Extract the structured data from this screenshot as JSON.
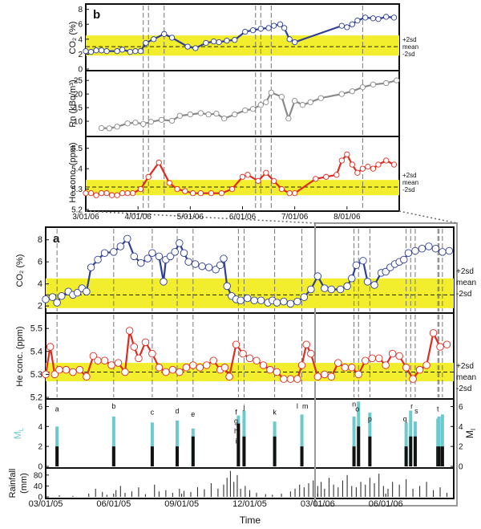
{
  "figure": {
    "colors": {
      "band": "#f2ee2e",
      "co2": "#2f3f95",
      "rn": "#8a8a8a",
      "he": "#e02a1f",
      "ml": "#6ec9cd",
      "mi": "#111111",
      "rain": "#333333",
      "marker_fill": "#ffffff"
    },
    "band_labels": [
      "+2sd",
      "mean",
      "-2sd"
    ]
  },
  "panels": {
    "b": {
      "label": "b",
      "x_tick_labels": [
        "3/01/06",
        "4/01/06",
        "5/01/06",
        "6/01/06",
        "7/01/06",
        "8/01/06"
      ],
      "co2": {
        "ylabel": "CO₂ (%)",
        "ticks": [
          "0",
          "2",
          "4",
          "6",
          "8"
        ]
      },
      "rn": {
        "ylabel": "Rn (kBq/m³)",
        "ticks": [
          "10",
          "15",
          "20",
          "25"
        ]
      },
      "he": {
        "ylabel": "He conc. (ppm)",
        "ticks": [
          "5.2",
          "5.3",
          "5.4",
          "5.5"
        ]
      }
    },
    "a": {
      "label": "a",
      "co2": {
        "ylabel": "CO₂ (%)",
        "ticks": [
          "2",
          "4",
          "6",
          "8"
        ]
      },
      "he": {
        "ylabel": "He conc. (ppm)",
        "ticks": [
          "5.2",
          "5.3",
          "5.4",
          "5.5"
        ]
      },
      "quake": {
        "ml_label": "M",
        "ml_sub": "L",
        "mi_label": "M",
        "mi_sub": "I",
        "left_ticks": [
          "0",
          "2",
          "4",
          "6"
        ],
        "right_ticks": [
          "0",
          "2",
          "4",
          "6"
        ]
      },
      "rain": {
        "ylabel_line1": "Rainfall",
        "ylabel_line2": "(mm)",
        "ticks": [
          "0",
          "40",
          "80"
        ]
      },
      "x_tick_labels": [
        "03/01/05",
        "06/01/05",
        "09/01/05",
        "12/01/05",
        "03/01/06",
        "06/01/06"
      ],
      "xlabel": "Time"
    }
  },
  "chart_data": [
    {
      "id": "panel-b-co2",
      "type": "line",
      "title": "b",
      "xlabel": "",
      "ylabel": "CO₂ (%)",
      "ylim": [
        0,
        8.5
      ],
      "xlim": [
        0,
        6
      ],
      "x_unit": "months since 3/01/06",
      "band": {
        "low": 1.8,
        "mean": 3.0,
        "high": 4.5
      },
      "x": [
        0,
        0.1,
        0.2,
        0.3,
        0.4,
        0.6,
        0.7,
        0.85,
        0.95,
        1.05,
        1.15,
        1.3,
        1.5,
        1.65,
        1.95,
        2.1,
        2.3,
        2.45,
        2.55,
        2.7,
        2.85,
        3.05,
        3.2,
        3.35,
        3.5,
        3.6,
        3.72,
        3.8,
        3.9,
        4.0,
        4.9,
        5.0,
        5.1,
        5.2,
        5.35,
        5.5,
        5.6,
        5.75,
        5.9
      ],
      "values": [
        2.4,
        2.3,
        2.5,
        2.5,
        2.4,
        2.4,
        2.6,
        2.3,
        2.4,
        2.4,
        3.5,
        4.0,
        4.7,
        4.2,
        3.0,
        2.8,
        3.5,
        3.7,
        3.6,
        3.8,
        3.9,
        5.0,
        5.2,
        5.4,
        5.5,
        5.8,
        6.0,
        5.5,
        4.0,
        3.6,
        5.8,
        5.6,
        6.0,
        6.5,
        6.9,
        6.8,
        6.7,
        7.0,
        6.9
      ]
    },
    {
      "id": "panel-b-rn",
      "type": "line",
      "title": "",
      "xlabel": "",
      "ylabel": "Rn (kBq/m³)",
      "ylim": [
        5,
        28
      ],
      "xlim": [
        0,
        6
      ],
      "x_unit": "months since 3/01/06",
      "x": [
        0.3,
        0.45,
        0.6,
        0.8,
        0.95,
        1.1,
        1.25,
        1.45,
        1.65,
        1.8,
        2.0,
        2.2,
        2.35,
        2.5,
        2.65,
        2.85,
        3.05,
        3.2,
        3.35,
        3.45,
        3.55,
        3.75,
        3.88,
        4.0,
        4.15,
        4.3,
        4.5,
        4.9,
        5.1,
        5.3,
        5.5,
        5.75,
        5.95
      ],
      "values": [
        7.5,
        7.4,
        8.0,
        9.2,
        9.5,
        9.0,
        9.8,
        10.5,
        10.2,
        12.0,
        12.5,
        13.0,
        12.5,
        12.8,
        11.0,
        12.5,
        14.0,
        14.5,
        16.0,
        17.0,
        20.5,
        19.0,
        11.0,
        17.5,
        16.0,
        17.0,
        18.5,
        20.0,
        21.0,
        22.5,
        23.5,
        24.0,
        25.0
      ]
    },
    {
      "id": "panel-b-he",
      "type": "line",
      "title": "",
      "xlabel": "",
      "ylabel": "He conc. (ppm)",
      "ylim": [
        5.2,
        5.55
      ],
      "xlim": [
        0,
        6
      ],
      "x_unit": "months since 3/01/06",
      "band": {
        "low": 5.27,
        "mean": 5.31,
        "high": 5.345
      },
      "x": [
        0,
        0.1,
        0.2,
        0.3,
        0.4,
        0.5,
        0.6,
        0.7,
        0.8,
        0.9,
        1.05,
        1.2,
        1.4,
        1.6,
        1.75,
        1.9,
        2.05,
        2.2,
        2.4,
        2.6,
        2.8,
        3.0,
        3.1,
        3.3,
        3.45,
        3.6,
        3.75,
        3.9,
        4.0,
        4.4,
        4.6,
        4.8,
        4.9,
        5.0,
        5.1,
        5.2,
        5.3,
        5.4,
        5.5,
        5.6,
        5.75,
        5.9
      ],
      "values": [
        5.28,
        5.28,
        5.27,
        5.28,
        5.28,
        5.27,
        5.27,
        5.28,
        5.28,
        5.28,
        5.3,
        5.36,
        5.43,
        5.33,
        5.3,
        5.29,
        5.28,
        5.28,
        5.28,
        5.28,
        5.3,
        5.36,
        5.37,
        5.34,
        5.38,
        5.34,
        5.3,
        5.28,
        5.28,
        5.35,
        5.36,
        5.37,
        5.44,
        5.47,
        5.42,
        5.38,
        5.4,
        5.41,
        5.4,
        5.42,
        5.44,
        5.42
      ]
    },
    {
      "id": "panel-a-co2",
      "type": "line",
      "title": "a",
      "xlabel": "",
      "ylabel": "CO₂ (%)",
      "ylim": [
        1.5,
        9
      ],
      "xlim": [
        0,
        18
      ],
      "x_unit": "months since 03/01/05",
      "band": {
        "low": 1.8,
        "mean": 3.0,
        "high": 4.5
      },
      "x": [
        0,
        0.3,
        0.5,
        0.7,
        1.0,
        1.2,
        1.4,
        1.6,
        1.8,
        2.0,
        2.3,
        2.6,
        3.0,
        3.3,
        3.6,
        3.9,
        4.2,
        4.5,
        4.7,
        5.0,
        5.2,
        5.3,
        5.5,
        5.7,
        5.9,
        6.1,
        6.3,
        6.6,
        6.9,
        7.2,
        7.5,
        7.7,
        7.85,
        8.0,
        8.2,
        8.4,
        8.6,
        8.9,
        9.2,
        9.5,
        9.8,
        10.0,
        10.2,
        10.5,
        10.8,
        11.1,
        11.4,
        11.7,
        12.0,
        12.3,
        12.6,
        13.0,
        13.3,
        13.5,
        13.7,
        14.0,
        14.2,
        14.5,
        14.8,
        15.0,
        15.2,
        15.4,
        15.6,
        15.8,
        16.0,
        16.3,
        16.6,
        16.9,
        17.2,
        17.5,
        17.8
      ],
      "values": [
        2.6,
        2.8,
        2.3,
        2.9,
        3.3,
        3.0,
        3.2,
        3.6,
        3.3,
        5.5,
        6.2,
        6.8,
        6.9,
        7.4,
        8.1,
        6.5,
        5.9,
        6.3,
        6.8,
        6.5,
        4.2,
        6.2,
        6.5,
        6.9,
        7.7,
        6.8,
        6.0,
        5.8,
        5.6,
        5.5,
        5.3,
        5.7,
        6.3,
        3.8,
        2.9,
        2.6,
        2.5,
        2.7,
        2.5,
        2.5,
        2.3,
        2.5,
        2.3,
        2.4,
        2.2,
        2.4,
        2.8,
        3.5,
        4.7,
        3.6,
        3.5,
        3.5,
        3.8,
        4.5,
        5.7,
        6.1,
        4.2,
        3.9,
        5.0,
        5.1,
        5.5,
        5.8,
        6.0,
        6.2,
        6.8,
        7.0,
        7.2,
        7.4,
        7.2,
        6.9,
        7.0
      ]
    },
    {
      "id": "panel-a-he",
      "type": "line",
      "title": "",
      "xlabel": "",
      "ylabel": "He conc. (ppm)",
      "ylim": [
        5.2,
        5.56
      ],
      "xlim": [
        0,
        18
      ],
      "x_unit": "months since 03/01/05",
      "band": {
        "low": 5.27,
        "mean": 5.31,
        "high": 5.35
      },
      "x": [
        0,
        0.2,
        0.4,
        0.6,
        0.9,
        1.2,
        1.5,
        1.8,
        2.1,
        2.3,
        2.6,
        2.9,
        3.2,
        3.5,
        3.7,
        3.9,
        4.1,
        4.4,
        4.7,
        5.0,
        5.3,
        5.6,
        5.9,
        6.2,
        6.5,
        6.8,
        7.1,
        7.4,
        7.7,
        7.9,
        8.1,
        8.4,
        8.7,
        9.0,
        9.3,
        9.6,
        9.9,
        10.2,
        10.5,
        10.8,
        11.1,
        11.3,
        11.5,
        11.7,
        12.0,
        12.3,
        12.6,
        12.9,
        13.2,
        13.5,
        13.8,
        14.1,
        14.4,
        14.7,
        15.0,
        15.3,
        15.6,
        15.9,
        16.2,
        16.5,
        16.8,
        17.1,
        17.4,
        17.7
      ],
      "values": [
        5.3,
        5.42,
        5.3,
        5.32,
        5.32,
        5.31,
        5.32,
        5.29,
        5.38,
        5.36,
        5.36,
        5.34,
        5.35,
        5.31,
        5.49,
        5.42,
        5.37,
        5.44,
        5.39,
        5.33,
        5.31,
        5.32,
        5.31,
        5.33,
        5.34,
        5.33,
        5.34,
        5.36,
        5.32,
        5.33,
        5.29,
        5.43,
        5.39,
        5.37,
        5.36,
        5.34,
        5.32,
        5.31,
        5.28,
        5.28,
        5.28,
        5.34,
        5.43,
        5.39,
        5.29,
        5.3,
        5.29,
        5.35,
        5.33,
        5.33,
        5.3,
        5.36,
        5.37,
        5.37,
        5.34,
        5.39,
        5.38,
        5.33,
        5.28,
        5.32,
        5.34,
        5.48,
        5.42,
        5.43
      ]
    },
    {
      "id": "panel-a-earthquakes",
      "type": "bar",
      "title": "",
      "xlabel": "",
      "ylabel": "M_L",
      "ylabel_right": "M_I",
      "ylim": [
        0,
        6.6
      ],
      "xlim": [
        0,
        18
      ],
      "x_unit": "months since 03/01/05",
      "series": [
        {
          "name": "M_L",
          "values": [
            4.0,
            5.0,
            4.4,
            4.6,
            3.8,
            5.1,
            5.6,
            4.5,
            5.2,
            5.0,
            6.5,
            5.4,
            4.4,
            5.6,
            4.5,
            4.8,
            5.0,
            5.2
          ]
        },
        {
          "name": "M_I",
          "values": [
            2.0,
            2.0,
            2.0,
            2.0,
            3.0,
            4.3,
            3.0,
            3.0,
            2.0,
            2.0,
            4.0,
            3.0,
            2.0,
            3.0,
            3.0,
            2.0,
            2.0,
            2.0
          ]
        }
      ],
      "categories": [
        "a",
        "b",
        "c",
        "d",
        "e",
        "f",
        "g",
        "h",
        "i",
        "j",
        "k",
        "l",
        "m",
        "n",
        "o",
        "p",
        "q",
        "r"
      ],
      "event_labels": [
        "a",
        "b",
        "c",
        "d",
        "e",
        "f",
        "g",
        "h",
        "i",
        "j",
        "k",
        "l",
        "m",
        "n",
        "o",
        "p",
        "q",
        "r",
        "s",
        "t"
      ],
      "event_x": [
        0.5,
        3.0,
        4.7,
        5.8,
        6.5,
        8.5,
        8.75,
        10.1,
        11.3,
        13.6,
        13.8,
        14.3,
        15.9,
        16.1,
        16.3,
        17.3,
        17.35,
        17.5
      ],
      "event_label_positions": [
        0.5,
        3.0,
        4.7,
        5.8,
        6.5,
        8.4,
        8.4,
        8.4,
        8.4,
        8.75,
        10.1,
        11.1,
        11.45,
        13.6,
        13.75,
        14.3,
        15.85,
        16.15,
        16.35,
        17.3
      ],
      "event_label_y": [
        5.5,
        5.8,
        5.2,
        5.3,
        5.0,
        5.2,
        4.3,
        3.3,
        2.3,
        5.7,
        5.2,
        5.8,
        5.8,
        6.0,
        5.5,
        4.5,
        4.5,
        5.8,
        5.3,
        5.5
      ]
    },
    {
      "id": "panel-a-rainfall",
      "type": "bar",
      "title": "",
      "xlabel": "Time",
      "ylabel": "Rainfall (mm)",
      "ylim": [
        0,
        100
      ],
      "xlim": [
        0,
        18
      ],
      "x_unit": "months since 03/01/05",
      "x": [
        0.6,
        1.2,
        1.9,
        2.2,
        2.5,
        2.7,
        3.1,
        3.3,
        3.5,
        3.8,
        4.1,
        4.4,
        4.8,
        5.0,
        5.3,
        5.6,
        5.9,
        6.1,
        6.4,
        6.7,
        7.0,
        7.3,
        7.6,
        7.85,
        8.0,
        8.15,
        8.3,
        8.45,
        8.6,
        8.8,
        9.0,
        9.3,
        9.7,
        10.0,
        10.4,
        10.8,
        11.0,
        11.2,
        11.4,
        11.6,
        11.8,
        12.0,
        12.15,
        12.3,
        12.5,
        12.7,
        12.9,
        13.1,
        13.3,
        13.5,
        13.7,
        13.9,
        14.1,
        14.3,
        14.5,
        14.7,
        14.9,
        15.1,
        15.3,
        15.6,
        15.9,
        16.2,
        16.5,
        16.8,
        17.1,
        17.4,
        17.7
      ],
      "values": [
        6,
        4,
        12,
        30,
        18,
        8,
        25,
        40,
        15,
        20,
        35,
        10,
        45,
        20,
        25,
        15,
        30,
        22,
        18,
        35,
        28,
        50,
        30,
        45,
        70,
        95,
        55,
        80,
        30,
        40,
        25,
        15,
        10,
        8,
        12,
        20,
        30,
        45,
        35,
        50,
        60,
        40,
        55,
        30,
        70,
        45,
        35,
        60,
        80,
        40,
        35,
        55,
        45,
        70,
        50,
        85,
        40,
        30,
        55,
        45,
        65,
        30,
        40,
        55,
        25,
        35,
        15
      ]
    }
  ]
}
